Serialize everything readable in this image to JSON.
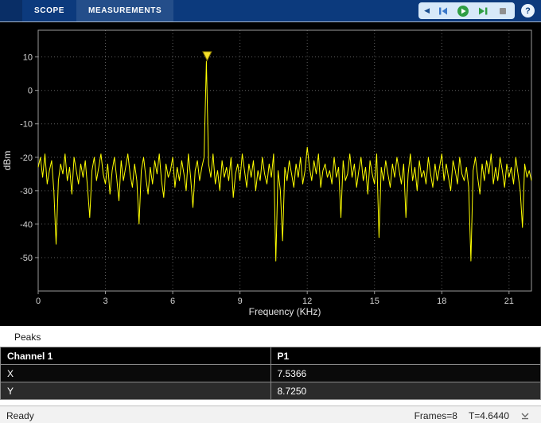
{
  "toolbar": {
    "tabs": [
      {
        "label": "SCOPE"
      },
      {
        "label": "MEASUREMENTS"
      }
    ],
    "controls": {
      "collapse_glyph": "◀",
      "help_glyph": "?",
      "run_color": "#2f9e44",
      "step_forward_color": "#2f9e44",
      "step_back_color": "#3a78c9",
      "stop_color": "#8f8f8f"
    }
  },
  "chart_data": {
    "type": "line",
    "title": "",
    "xlabel": "Frequency (KHz)",
    "ylabel": "dBm",
    "xlim": [
      0,
      22
    ],
    "ylim": [
      -60,
      18
    ],
    "xticks": [
      0,
      3,
      6,
      9,
      12,
      15,
      18,
      21
    ],
    "yticks": [
      10,
      0,
      -10,
      -20,
      -30,
      -40,
      -50
    ],
    "grid": true,
    "line_color": "#ffff00",
    "x_start": 0,
    "x_step": 0.1,
    "values": [
      -23,
      -20,
      -26,
      -19,
      -28,
      -24,
      -21,
      -30,
      -46,
      -27,
      -22,
      -25,
      -19,
      -27,
      -23,
      -31,
      -20,
      -24,
      -28,
      -22,
      -26,
      -21,
      -29,
      -38,
      -24,
      -20,
      -27,
      -23,
      -19,
      -25,
      -28,
      -22,
      -31,
      -24,
      -20,
      -26,
      -33,
      -21,
      -27,
      -23,
      -19,
      -25,
      -29,
      -22,
      -27,
      -40,
      -24,
      -20,
      -26,
      -31,
      -23,
      -28,
      -21,
      -25,
      -19,
      -27,
      -32,
      -22,
      -26,
      -24,
      -20,
      -29,
      -23,
      -27,
      -21,
      -25,
      -30,
      -19,
      -26,
      -35,
      -24,
      -21,
      -27,
      -23,
      -20,
      8.725,
      -22,
      -26,
      -19,
      -28,
      -24,
      -30,
      -21,
      -26,
      -23,
      -27,
      -20,
      -32,
      -25,
      -22,
      -27,
      -19,
      -24,
      -29,
      -22,
      -26,
      -21,
      -30,
      -24,
      -27,
      -20,
      -25,
      -28,
      -22,
      -26,
      -19,
      -51,
      -24,
      -30,
      -45,
      -23,
      -27,
      -21,
      -25,
      -29,
      -22,
      -26,
      -20,
      -28,
      -24,
      -17,
      -23,
      -27,
      -21,
      -25,
      -19,
      -29,
      -24,
      -22,
      -26,
      -24,
      -28,
      -20,
      -26,
      -23,
      -38,
      -21,
      -27,
      -25,
      -19,
      -26,
      -22,
      -29,
      -24,
      -20,
      -27,
      -23,
      -31,
      -21,
      -25,
      -28,
      -19,
      -44,
      -23,
      -27,
      -21,
      -25,
      -29,
      -22,
      -26,
      -20,
      -24,
      -28,
      -22,
      -38,
      -25,
      -19,
      -27,
      -23,
      -30,
      -21,
      -26,
      -24,
      -28,
      -20,
      -25,
      -29,
      -22,
      -27,
      -23,
      -19,
      -27,
      -22,
      -26,
      -30,
      -21,
      -24,
      -28,
      -20,
      -25,
      -27,
      -23,
      -29,
      -51,
      -24,
      -20,
      -26,
      -31,
      -22,
      -27,
      -21,
      -25,
      -19,
      -28,
      -23,
      -27,
      -20,
      -24,
      -29,
      -22,
      -26,
      -23,
      -28,
      -20,
      -25,
      -30,
      -41,
      -22,
      -26,
      -24,
      -27
    ],
    "peak": {
      "x": 7.5366,
      "y": 8.725,
      "marker": "triangle-down"
    }
  },
  "measurements_panel": {
    "title": "Peaks",
    "table": {
      "columns": [
        "Channel 1",
        "P1"
      ],
      "rows": [
        {
          "label": "X",
          "value": "7.5366"
        },
        {
          "label": "Y",
          "value": "8.7250"
        }
      ]
    }
  },
  "status_bar": {
    "left": "Ready",
    "frames": "Frames=8",
    "time": "T=4.6440"
  }
}
